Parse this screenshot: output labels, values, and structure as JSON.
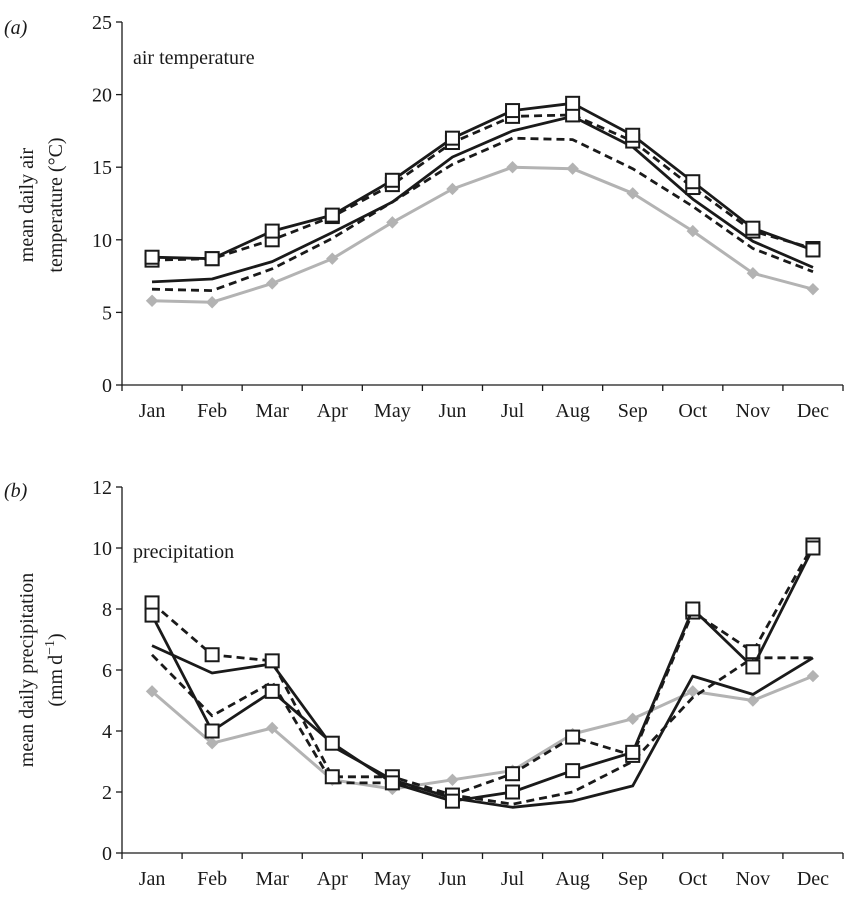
{
  "chart_data": [
    {
      "type": "line",
      "panel_label": "(a)",
      "title": "air temperature",
      "ylabel_lines": [
        "mean daily air",
        "temperature (°C)"
      ],
      "ylim": [
        0,
        25
      ],
      "yticks": [
        "0",
        "5",
        "10",
        "15",
        "20",
        "25"
      ],
      "categories": [
        "Jan",
        "Feb",
        "Mar",
        "Apr",
        "May",
        "Jun",
        "Jul",
        "Aug",
        "Sep",
        "Oct",
        "Nov",
        "Dec"
      ],
      "grid": false,
      "series": [
        {
          "style": "grey-diamond",
          "values": [
            5.8,
            5.7,
            7.0,
            8.7,
            11.2,
            13.5,
            15.0,
            14.9,
            13.2,
            10.6,
            7.7,
            6.6
          ]
        },
        {
          "style": "dashed",
          "values": [
            6.6,
            6.5,
            8.0,
            10.1,
            12.6,
            15.2,
            17.0,
            16.9,
            14.9,
            12.3,
            9.4,
            7.8
          ]
        },
        {
          "style": "solid",
          "values": [
            7.1,
            7.3,
            8.5,
            10.5,
            12.6,
            15.7,
            17.5,
            18.5,
            16.4,
            12.8,
            9.9,
            8.1
          ]
        },
        {
          "style": "dashed-square",
          "values": [
            8.6,
            8.7,
            10.0,
            11.6,
            13.8,
            16.7,
            18.5,
            18.6,
            16.8,
            13.6,
            10.6,
            9.4
          ]
        },
        {
          "style": "solid-square",
          "values": [
            8.8,
            8.7,
            10.6,
            11.7,
            14.1,
            17.0,
            18.9,
            19.4,
            17.2,
            14.0,
            10.8,
            9.3
          ]
        }
      ]
    },
    {
      "type": "line",
      "panel_label": "(b)",
      "title": "precipitation",
      "ylabel_lines": [
        "mean daily precipitation",
        "(mm d",
        "−1",
        ")"
      ],
      "ylim": [
        0,
        12
      ],
      "yticks": [
        "0",
        "2",
        "4",
        "6",
        "8",
        "10",
        "12"
      ],
      "categories": [
        "Jan",
        "Feb",
        "Mar",
        "Apr",
        "May",
        "Jun",
        "Jul",
        "Aug",
        "Sep",
        "Oct",
        "Nov",
        "Dec"
      ],
      "grid": false,
      "series": [
        {
          "style": "grey-diamond",
          "values": [
            5.3,
            3.6,
            4.1,
            2.4,
            2.1,
            2.4,
            2.7,
            3.9,
            4.4,
            5.3,
            5.0,
            5.8
          ]
        },
        {
          "style": "dashed",
          "values": [
            6.5,
            4.5,
            5.6,
            2.3,
            2.3,
            1.9,
            1.6,
            2.0,
            3.0,
            5.1,
            6.4,
            6.4
          ]
        },
        {
          "style": "solid",
          "values": [
            6.8,
            5.9,
            6.2,
            3.5,
            2.4,
            1.8,
            1.5,
            1.7,
            2.2,
            5.8,
            5.2,
            6.4
          ]
        },
        {
          "style": "dashed-square",
          "values": [
            8.2,
            6.5,
            6.3,
            2.5,
            2.5,
            1.9,
            2.6,
            3.8,
            3.2,
            7.9,
            6.6,
            10.1
          ]
        },
        {
          "style": "solid-square",
          "values": [
            7.8,
            4.0,
            5.3,
            3.6,
            2.3,
            1.7,
            2.0,
            2.7,
            3.3,
            8.0,
            6.1,
            10.0
          ]
        }
      ]
    }
  ],
  "styles": {
    "grey": "#b3b3b3",
    "black": "#1a1a1a",
    "marker_fill": "#ffffff"
  }
}
